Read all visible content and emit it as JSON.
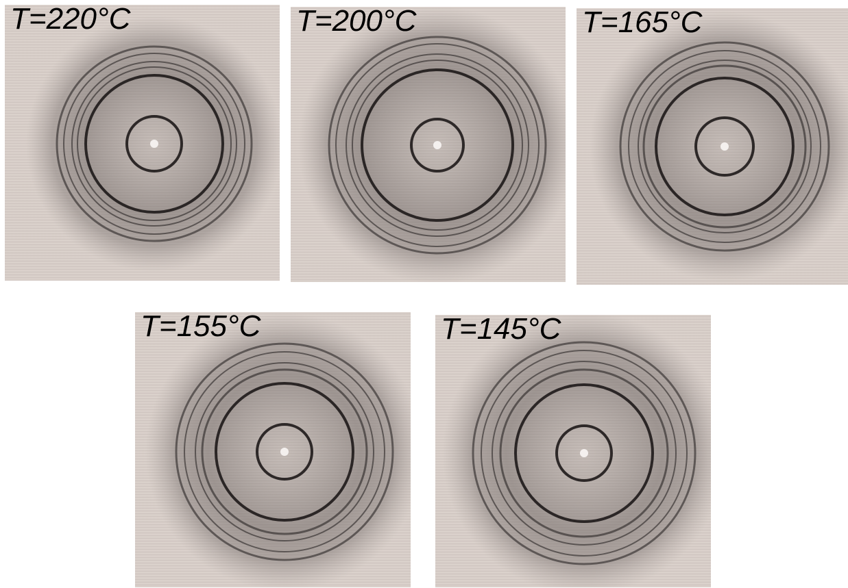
{
  "panels": [
    {
      "label": "T=220°C"
    },
    {
      "label": "T=200°C"
    },
    {
      "label": "T=165°C"
    },
    {
      "label": "T=155°C"
    },
    {
      "label": "T=145°C"
    }
  ]
}
